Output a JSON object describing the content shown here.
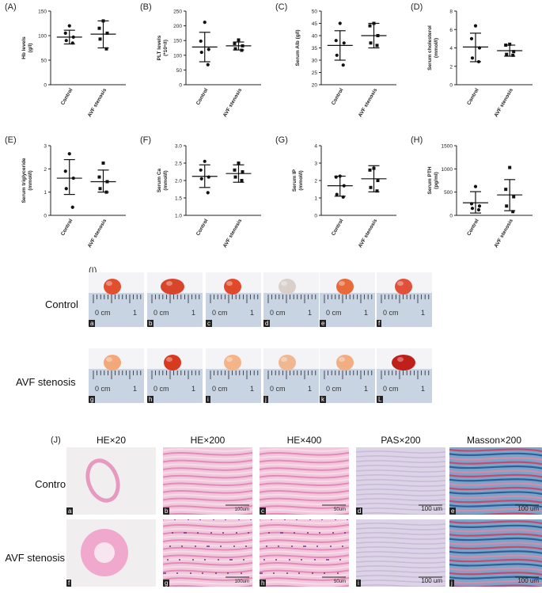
{
  "chart_data": [
    {
      "type": "scatter",
      "panel": "(A)",
      "ylabel_lines": [
        "Hb levels",
        "(g/l)"
      ],
      "ylim": [
        0,
        150
      ],
      "yticks": [
        0,
        50,
        100,
        150
      ],
      "categories": [
        "Control",
        "AVF stenosis"
      ],
      "series": [
        {
          "values": [
            120,
            105,
            97,
            90,
            85
          ],
          "mean": 97,
          "sd_low": 83,
          "sd_high": 111,
          "marker": "circle"
        },
        {
          "values": [
            130,
            115,
            105,
            93,
            73
          ],
          "mean": 103,
          "sd_low": 75,
          "sd_high": 130,
          "marker": "square"
        }
      ]
    },
    {
      "type": "scatter",
      "panel": "(B)",
      "ylabel_lines": [
        "PLT levels",
        "(*10⁹/l)"
      ],
      "ylim": [
        0,
        250
      ],
      "yticks": [
        0,
        50,
        100,
        150,
        200,
        250
      ],
      "categories": [
        "Control",
        "AVF stenosis"
      ],
      "series": [
        {
          "values": [
            212,
            148,
            120,
            110,
            68
          ],
          "mean": 128,
          "sd_low": 78,
          "sd_high": 178,
          "marker": "circle"
        },
        {
          "values": [
            152,
            140,
            132,
            122,
            117
          ],
          "mean": 132,
          "sd_low": 118,
          "sd_high": 145,
          "marker": "square"
        }
      ]
    },
    {
      "type": "scatter",
      "panel": "(C)",
      "ylabel_lines": [
        "Serum Alb (g/l)"
      ],
      "ylim": [
        20,
        50
      ],
      "yticks": [
        20,
        25,
        30,
        35,
        40,
        45,
        50
      ],
      "categories": [
        "Control",
        "AVF stenosis"
      ],
      "series": [
        {
          "values": [
            45,
            38,
            37,
            32,
            28
          ],
          "mean": 36,
          "sd_low": 30,
          "sd_high": 42,
          "marker": "circle"
        },
        {
          "values": [
            45,
            44,
            40,
            37,
            36
          ],
          "mean": 40,
          "sd_low": 35,
          "sd_high": 45,
          "marker": "square"
        }
      ]
    },
    {
      "type": "scatter",
      "panel": "(D)",
      "ylabel_lines": [
        "Serum cholesterol",
        "(mmol/l)"
      ],
      "ylim": [
        0,
        8
      ],
      "yticks": [
        0,
        2,
        4,
        6,
        8
      ],
      "categories": [
        "Control",
        "AVF stenosis"
      ],
      "series": [
        {
          "values": [
            6.4,
            5.0,
            4.0,
            2.9,
            2.5
          ],
          "mean": 4.1,
          "sd_low": 2.5,
          "sd_high": 5.6,
          "marker": "circle"
        },
        {
          "values": [
            4.4,
            4.3,
            3.6,
            3.3,
            3.2
          ],
          "mean": 3.7,
          "sd_low": 3.1,
          "sd_high": 4.3,
          "marker": "square"
        }
      ]
    },
    {
      "type": "scatter",
      "panel": "(E)",
      "ylabel_lines": [
        "Serum triglyceride",
        "(mmol/l)"
      ],
      "ylim": [
        0,
        3
      ],
      "yticks": [
        0,
        1,
        2,
        3
      ],
      "categories": [
        "Control",
        "AVF stenosis"
      ],
      "series": [
        {
          "values": [
            2.65,
            1.9,
            1.6,
            1.15,
            0.35
          ],
          "mean": 1.6,
          "sd_low": 0.9,
          "sd_high": 2.4,
          "marker": "circle"
        },
        {
          "values": [
            2.25,
            1.65,
            1.45,
            1.15,
            1.0
          ],
          "mean": 1.45,
          "sd_low": 1.0,
          "sd_high": 1.95,
          "marker": "square"
        }
      ]
    },
    {
      "type": "scatter",
      "panel": "(F)",
      "ylabel_lines": [
        "Serum Ca",
        "(mmol/l)"
      ],
      "ylim": [
        1.0,
        3.0
      ],
      "yticks": [
        1.0,
        1.5,
        2.0,
        2.5,
        3.0
      ],
      "categories": [
        "Control",
        "AVF stenosis"
      ],
      "series": [
        {
          "values": [
            2.55,
            2.3,
            2.1,
            2.05,
            1.65
          ],
          "mean": 2.12,
          "sd_low": 1.8,
          "sd_high": 2.45,
          "marker": "circle"
        },
        {
          "values": [
            2.5,
            2.3,
            2.25,
            2.1,
            2.0
          ],
          "mean": 2.2,
          "sd_low": 1.95,
          "sd_high": 2.45,
          "marker": "square"
        }
      ]
    },
    {
      "type": "scatter",
      "panel": "(G)",
      "ylabel_lines": [
        "Serum IP",
        "(mmol/l)"
      ],
      "ylim": [
        0,
        4
      ],
      "yticks": [
        0,
        1,
        2,
        3,
        4
      ],
      "categories": [
        "Control",
        "AVF stenosis"
      ],
      "series": [
        {
          "values": [
            2.25,
            2.2,
            1.7,
            1.2,
            1.05
          ],
          "mean": 1.7,
          "sd_low": 1.1,
          "sd_high": 2.25,
          "marker": "circle"
        },
        {
          "values": [
            2.7,
            2.6,
            2.0,
            1.6,
            1.4
          ],
          "mean": 2.1,
          "sd_low": 1.35,
          "sd_high": 2.85,
          "marker": "square"
        }
      ]
    },
    {
      "type": "scatter",
      "panel": "(H)",
      "ylabel_lines": [
        "Serum PTH",
        "(pg/ml)"
      ],
      "ylim": [
        0,
        1500
      ],
      "yticks": [
        0,
        500,
        1000,
        1500
      ],
      "categories": [
        "Control",
        "AVF stenosis"
      ],
      "series": [
        {
          "values": [
            620,
            250,
            200,
            150,
            120
          ],
          "mean": 270,
          "sd_low": 50,
          "sd_high": 510,
          "marker": "circle"
        },
        {
          "values": [
            1030,
            560,
            400,
            200,
            80
          ],
          "mean": 440,
          "sd_low": 100,
          "sd_high": 770,
          "marker": "square"
        }
      ]
    }
  ],
  "panel_i": {
    "label": "(I)",
    "rows": [
      {
        "name": "Control",
        "tags": [
          "a",
          "b",
          "c",
          "d",
          "e",
          "f"
        ],
        "tissue": [
          "#e0502e",
          "#d8452a",
          "#e04a2a",
          "#d9d0cc",
          "#e86a3a",
          "#e0503a"
        ]
      },
      {
        "name": "AVF stenosis",
        "tags": [
          "g",
          "h",
          "i",
          "j",
          "k",
          "L"
        ],
        "tissue": [
          "#f2a878",
          "#d83a1e",
          "#f4b488",
          "#f0b890",
          "#f2ae82",
          "#c0201a"
        ]
      }
    ],
    "ruler_text": "0 cm",
    "ruler_one": "1"
  },
  "panel_j": {
    "label": "(J)",
    "headers": [
      "HE×20",
      "HE×200",
      "HE×400",
      "PAS×200",
      "Masson×200"
    ],
    "rows": [
      {
        "name": "Control",
        "tags": [
          "a",
          "b",
          "c",
          "d",
          "e"
        ],
        "scales": [
          "",
          "100um",
          "50um",
          "100 um",
          "100 um"
        ]
      },
      {
        "name": "AVF stenosis",
        "tags": [
          "f",
          "g",
          "h",
          "i",
          "j"
        ],
        "scales": [
          "",
          "100um",
          "50um",
          "100 um",
          "100 um"
        ]
      }
    ]
  }
}
